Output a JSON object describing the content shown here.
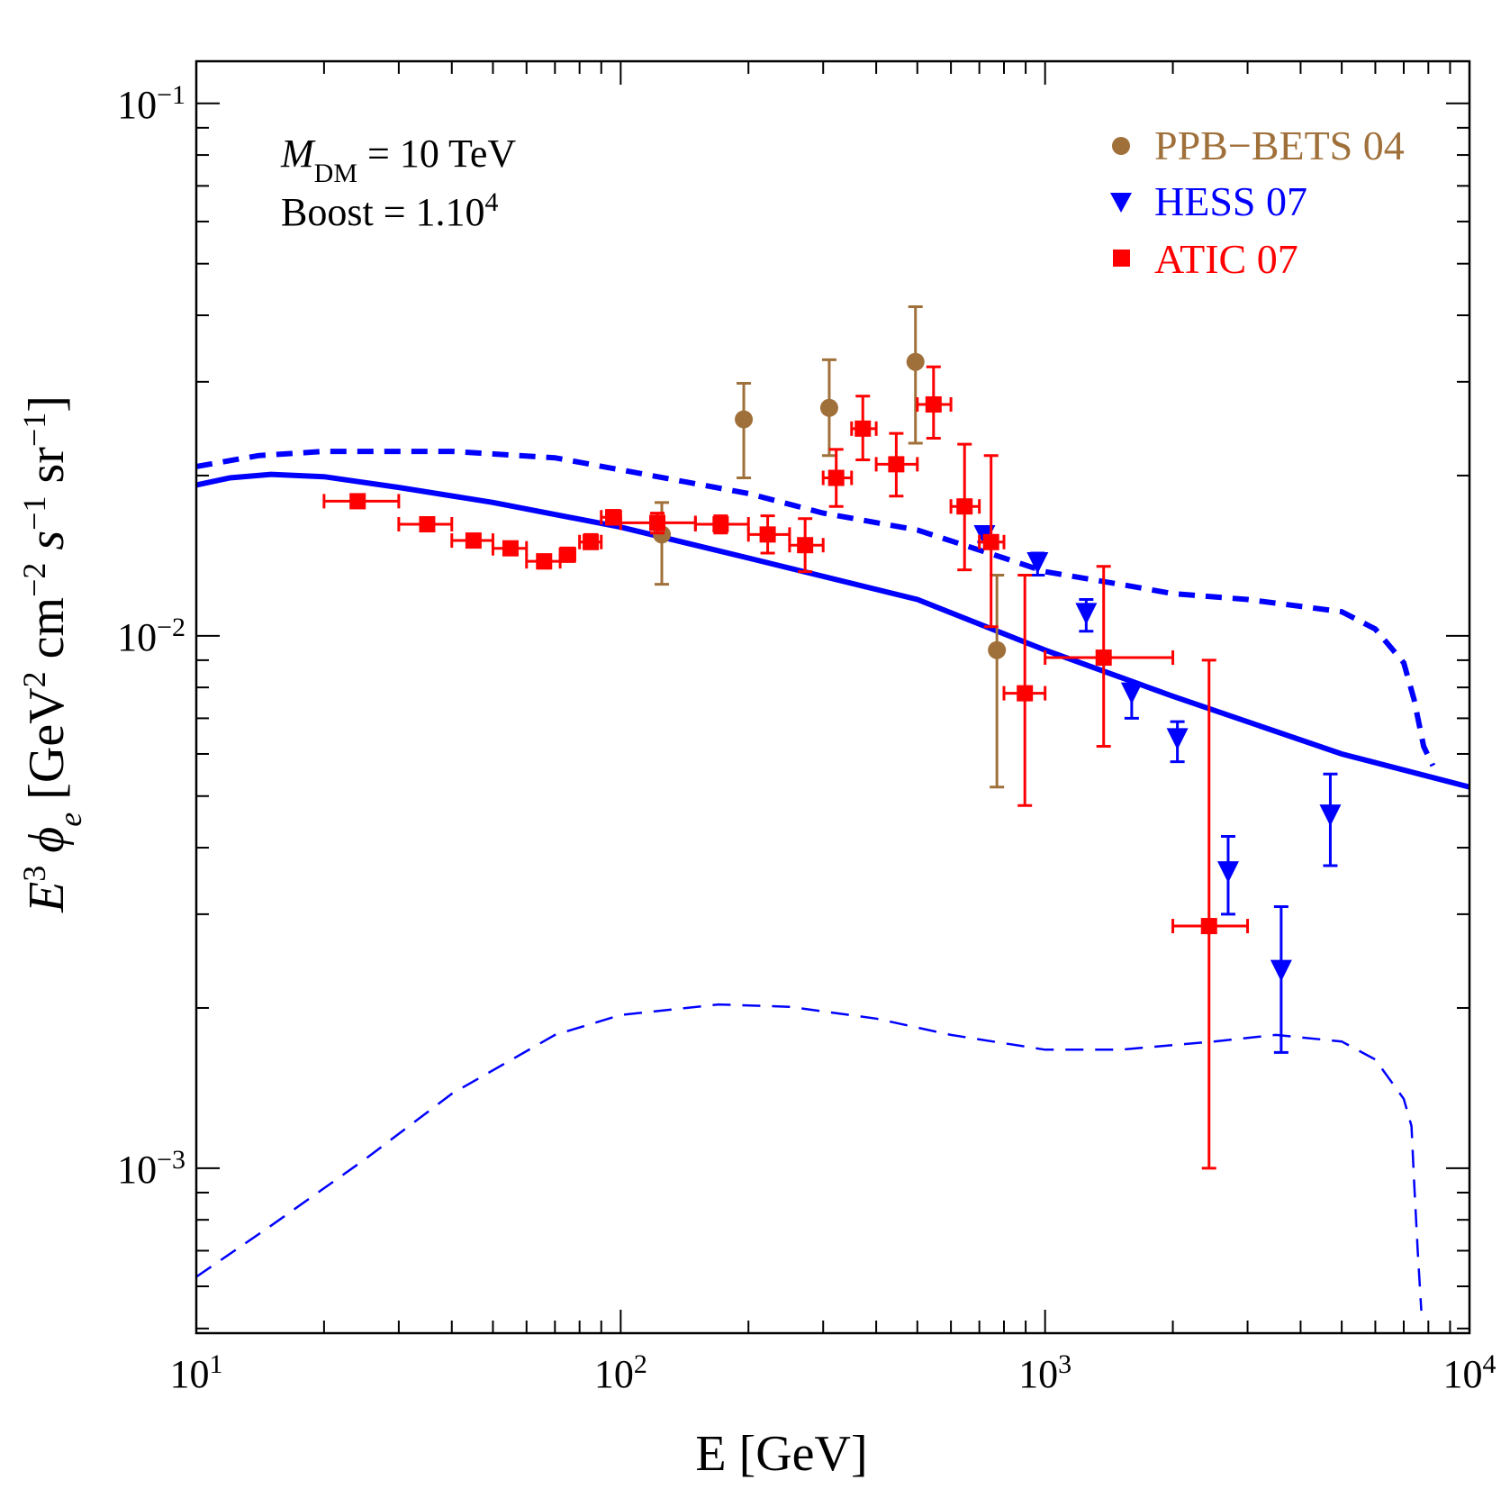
{
  "chart_data": {
    "type": "scatter",
    "xscale": "log",
    "yscale": "log",
    "xlim": [
      10,
      10000
    ],
    "ylim": [
      0.00049,
      0.12
    ],
    "xlabel_parts": {
      "main": "E [GeV]"
    },
    "ylabel_parts": {
      "e": "E",
      "e_sup": "3",
      "phi": "ϕ",
      "phi_sub": "e",
      "open": " [GeV",
      "sup2": "2",
      "cm": " cm",
      "supm2": "−2",
      "s": " s",
      "supm1a": "−1",
      "sr": " sr",
      "supm1b": "−1",
      "close": "]"
    },
    "xticks": [
      {
        "value": 10,
        "base": "10",
        "exp": "1"
      },
      {
        "value": 100,
        "base": "10",
        "exp": "2"
      },
      {
        "value": 1000,
        "base": "10",
        "exp": "3"
      },
      {
        "value": 10000,
        "base": "10",
        "exp": "4"
      }
    ],
    "yticks": [
      {
        "value": 0.1,
        "base": "10",
        "exp": "−1"
      },
      {
        "value": 0.01,
        "base": "10",
        "exp": "−2"
      },
      {
        "value": 0.001,
        "base": "10",
        "exp": "−3"
      }
    ],
    "annotations": {
      "mass_symbol": "M",
      "mass_sub": "DM",
      "mass_value": " = 10 TeV",
      "boost_text": "Boost = 1.10",
      "boost_sup": "4"
    },
    "legend_position": "top-right",
    "legend": [
      {
        "label": "PPB−BETS 04",
        "color": "#a0703a",
        "marker": "circle"
      },
      {
        "label": "HESS 07",
        "color": "#0000ff",
        "marker": "triangle-down"
      },
      {
        "label": "ATIC 07",
        "color": "#ff0000",
        "marker": "square"
      }
    ],
    "series": [
      {
        "marker": "circle",
        "color": "#a0703a",
        "points": [
          {
            "x": 195,
            "y": 0.0255,
            "ylo": 0.0198,
            "yhi": 0.0298
          },
          {
            "x": 310,
            "y": 0.0268,
            "ylo": 0.0218,
            "yhi": 0.033
          },
          {
            "x": 495,
            "y": 0.0327,
            "ylo": 0.023,
            "yhi": 0.0415
          },
          {
            "x": 770,
            "y": 0.0094,
            "ylo": 0.0052,
            "yhi": 0.013
          },
          {
            "x": 125,
            "y": 0.0155,
            "ylo": 0.0125,
            "yhi": 0.0178
          }
        ]
      },
      {
        "marker": "triangle-down",
        "color": "#0000ff",
        "points": [
          {
            "x": 720,
            "y": 0.0154,
            "ylo": 0.015,
            "yhi": 0.0158
          },
          {
            "x": 960,
            "y": 0.0137,
            "ylo": 0.013,
            "yhi": 0.0143
          },
          {
            "x": 1250,
            "y": 0.011,
            "ylo": 0.0102,
            "yhi": 0.0117
          },
          {
            "x": 1600,
            "y": 0.0078,
            "ylo": 0.007,
            "yhi": 0.0081
          },
          {
            "x": 2050,
            "y": 0.0064,
            "ylo": 0.0058,
            "yhi": 0.0069
          },
          {
            "x": 2700,
            "y": 0.0036,
            "ylo": 0.003,
            "yhi": 0.0042
          },
          {
            "x": 3600,
            "y": 0.00235,
            "ylo": 0.00165,
            "yhi": 0.0031
          },
          {
            "x": 4700,
            "y": 0.0046,
            "ylo": 0.0037,
            "yhi": 0.0055
          }
        ]
      },
      {
        "marker": "square",
        "color": "#ff0000",
        "points": [
          {
            "x": 24,
            "y": 0.0179,
            "xlo": 20,
            "xhi": 30,
            "ylo": 0.0174,
            "yhi": 0.0184
          },
          {
            "x": 35,
            "y": 0.0162,
            "xlo": 30,
            "xhi": 40,
            "ylo": 0.0158,
            "yhi": 0.0166
          },
          {
            "x": 45,
            "y": 0.0151,
            "xlo": 40,
            "xhi": 50,
            "ylo": 0.0147,
            "yhi": 0.0155
          },
          {
            "x": 55,
            "y": 0.0146,
            "xlo": 50,
            "xhi": 60,
            "ylo": 0.0142,
            "yhi": 0.015
          },
          {
            "x": 66,
            "y": 0.0138,
            "xlo": 60,
            "xhi": 72,
            "ylo": 0.0134,
            "yhi": 0.0142
          },
          {
            "x": 75,
            "y": 0.0142,
            "xlo": 72,
            "xhi": 78,
            "ylo": 0.0138,
            "yhi": 0.0146
          },
          {
            "x": 85,
            "y": 0.015,
            "xlo": 80,
            "xhi": 90,
            "ylo": 0.0146,
            "yhi": 0.0155
          },
          {
            "x": 96,
            "y": 0.0167,
            "xlo": 90,
            "xhi": 100,
            "ylo": 0.0162,
            "yhi": 0.0172
          },
          {
            "x": 122,
            "y": 0.0163,
            "xlo": 100,
            "xhi": 150,
            "ylo": 0.0156,
            "yhi": 0.017
          },
          {
            "x": 172,
            "y": 0.0162,
            "xlo": 150,
            "xhi": 200,
            "ylo": 0.0156,
            "yhi": 0.0168
          },
          {
            "x": 222,
            "y": 0.0155,
            "xlo": 200,
            "xhi": 250,
            "ylo": 0.0143,
            "yhi": 0.0168
          },
          {
            "x": 272,
            "y": 0.0148,
            "xlo": 250,
            "xhi": 300,
            "ylo": 0.0132,
            "yhi": 0.0166
          },
          {
            "x": 322,
            "y": 0.0198,
            "xlo": 300,
            "xhi": 350,
            "ylo": 0.0175,
            "yhi": 0.0224
          },
          {
            "x": 372,
            "y": 0.0245,
            "xlo": 350,
            "xhi": 400,
            "ylo": 0.0214,
            "yhi": 0.0282
          },
          {
            "x": 446,
            "y": 0.021,
            "xlo": 400,
            "xhi": 500,
            "ylo": 0.0183,
            "yhi": 0.024
          },
          {
            "x": 546,
            "y": 0.0272,
            "xlo": 500,
            "xhi": 600,
            "ylo": 0.0235,
            "yhi": 0.032
          },
          {
            "x": 646,
            "y": 0.0175,
            "xlo": 600,
            "xhi": 700,
            "ylo": 0.0133,
            "yhi": 0.0229
          },
          {
            "x": 746,
            "y": 0.015,
            "xlo": 700,
            "xhi": 800,
            "ylo": 0.0104,
            "yhi": 0.0218
          },
          {
            "x": 896,
            "y": 0.0078,
            "xlo": 800,
            "xhi": 1000,
            "ylo": 0.0048,
            "yhi": 0.013
          },
          {
            "x": 1374,
            "y": 0.0091,
            "xlo": 1000,
            "xhi": 2000,
            "ylo": 0.0062,
            "yhi": 0.0135
          },
          {
            "x": 2434,
            "y": 0.00285,
            "xlo": 2000,
            "xhi": 3000,
            "ylo": 0.001,
            "yhi": 0.009
          }
        ]
      }
    ],
    "curves": [
      {
        "style": "solid",
        "color": "#0000ff",
        "points": [
          [
            10,
            0.0192
          ],
          [
            12,
            0.0198
          ],
          [
            15,
            0.0201
          ],
          [
            20,
            0.0199
          ],
          [
            30,
            0.019
          ],
          [
            50,
            0.0178
          ],
          [
            100,
            0.016
          ],
          [
            200,
            0.014
          ],
          [
            500,
            0.0117
          ],
          [
            1000,
            0.0094
          ],
          [
            2000,
            0.0077
          ],
          [
            5000,
            0.006
          ],
          [
            10000,
            0.0052
          ]
        ]
      },
      {
        "style": "dashed-thick",
        "color": "#0000ff",
        "points": [
          [
            10,
            0.0208
          ],
          [
            14,
            0.0218
          ],
          [
            20,
            0.0222
          ],
          [
            40,
            0.0222
          ],
          [
            70,
            0.0216
          ],
          [
            100,
            0.0205
          ],
          [
            200,
            0.0185
          ],
          [
            300,
            0.017
          ],
          [
            500,
            0.0158
          ],
          [
            800,
            0.014
          ],
          [
            1000,
            0.0132
          ],
          [
            1500,
            0.0125
          ],
          [
            2000,
            0.012
          ],
          [
            3000,
            0.0117
          ],
          [
            5000,
            0.0111
          ],
          [
            6000,
            0.0103
          ],
          [
            7000,
            0.0089
          ],
          [
            7400,
            0.0076
          ],
          [
            7800,
            0.0062
          ],
          [
            8200,
            0.0057
          ]
        ]
      },
      {
        "style": "dashed-thin",
        "color": "#0000ff",
        "points": [
          [
            10,
            0.000625
          ],
          [
            15,
            0.00078
          ],
          [
            25,
            0.00104
          ],
          [
            40,
            0.00138
          ],
          [
            70,
            0.00178
          ],
          [
            100,
            0.00194
          ],
          [
            170,
            0.00203
          ],
          [
            250,
            0.00201
          ],
          [
            400,
            0.00191
          ],
          [
            600,
            0.00178
          ],
          [
            1000,
            0.00167
          ],
          [
            1500,
            0.00167
          ],
          [
            2500,
            0.00173
          ],
          [
            3500,
            0.00178
          ],
          [
            5000,
            0.00173
          ],
          [
            6000,
            0.0016
          ],
          [
            7000,
            0.00135
          ],
          [
            7300,
            0.0012
          ],
          [
            7400,
            0.00095
          ],
          [
            7550,
            0.0007
          ],
          [
            7700,
            0.00054
          ]
        ]
      }
    ]
  }
}
